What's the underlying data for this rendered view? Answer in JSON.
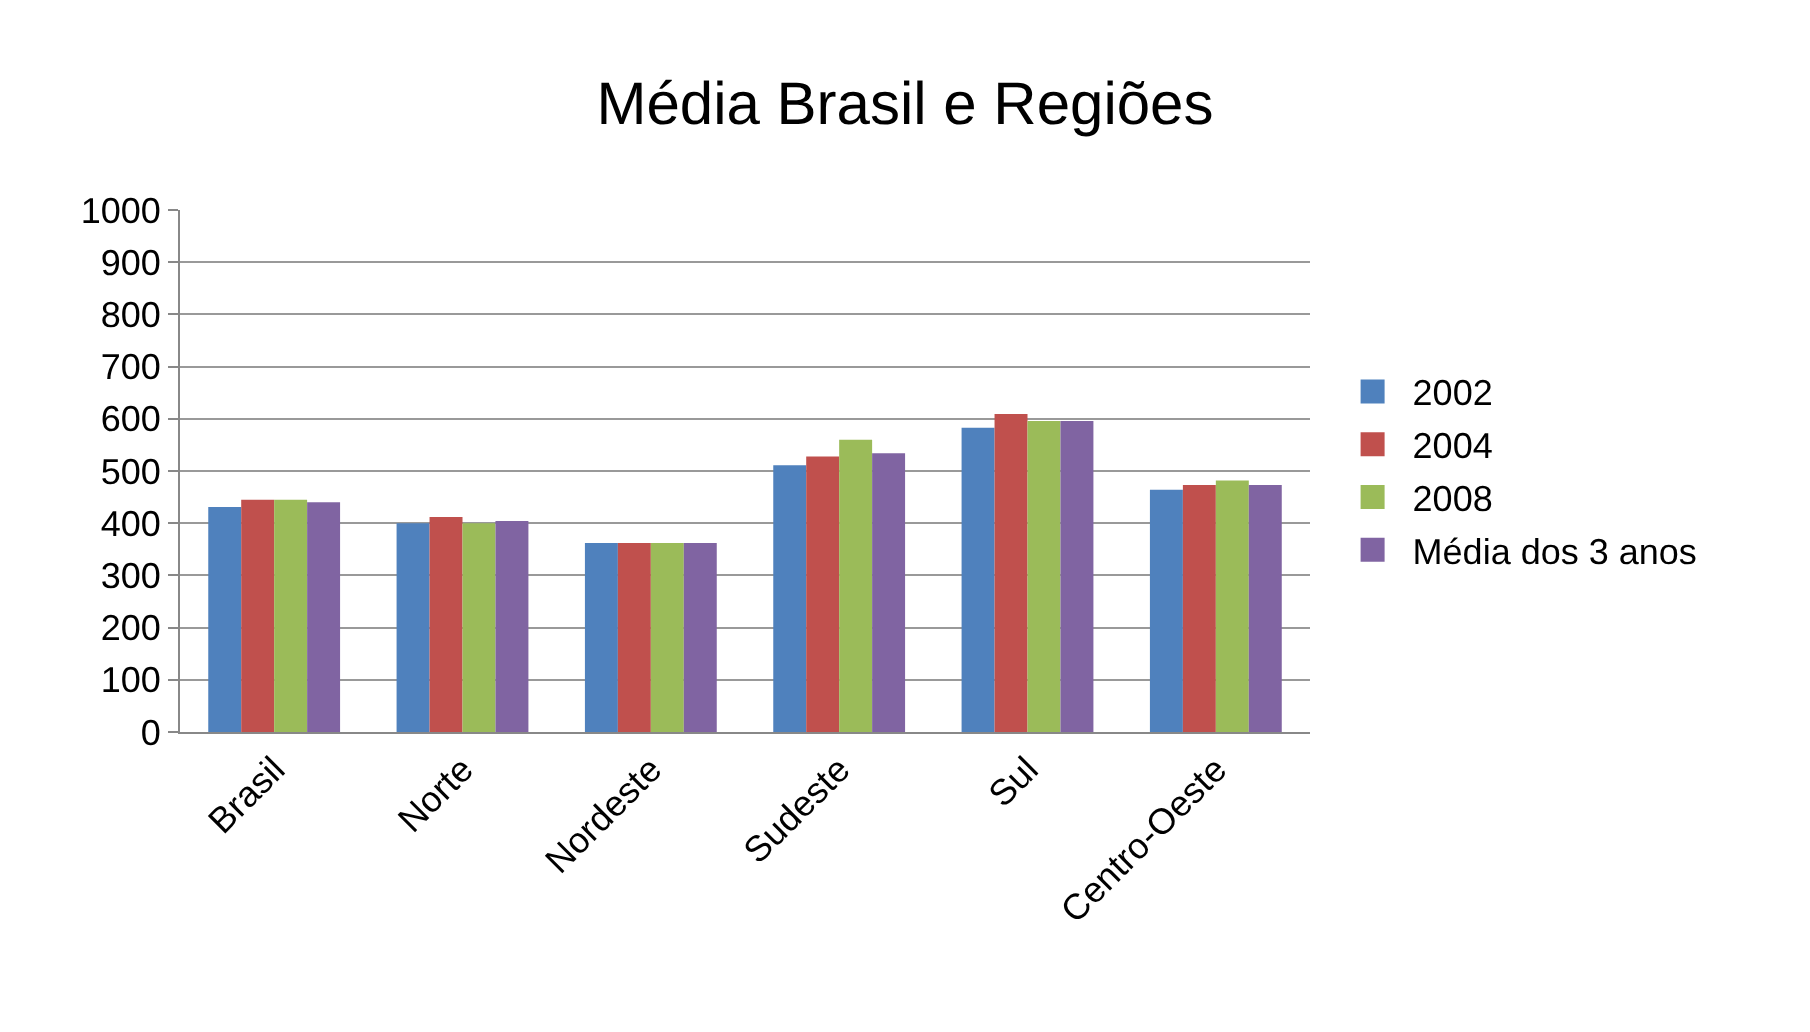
{
  "chart_data": {
    "type": "bar",
    "title": "Média Brasil e Regiões",
    "categories": [
      "Brasil",
      "Norte",
      "Nordeste",
      "Sudeste",
      "Sul",
      "Centro-Oeste"
    ],
    "series": [
      {
        "name": "2002",
        "color": "#4f81bd",
        "values": [
          431,
          400,
          362,
          511,
          583,
          464
        ]
      },
      {
        "name": "2004",
        "color": "#c0504d",
        "values": [
          445,
          412,
          362,
          528,
          609,
          473
        ]
      },
      {
        "name": "2008",
        "color": "#9bbb59",
        "values": [
          445,
          400,
          362,
          560,
          596,
          482
        ]
      },
      {
        "name": "Média dos 3 anos",
        "color": "#8064a2",
        "values": [
          440,
          404,
          362,
          534,
          596,
          473
        ]
      }
    ],
    "ylim": [
      0,
      1000
    ],
    "yticks": [
      0,
      100,
      200,
      300,
      400,
      500,
      600,
      700,
      800,
      900,
      1000
    ],
    "grid": "y",
    "legend": "right"
  }
}
